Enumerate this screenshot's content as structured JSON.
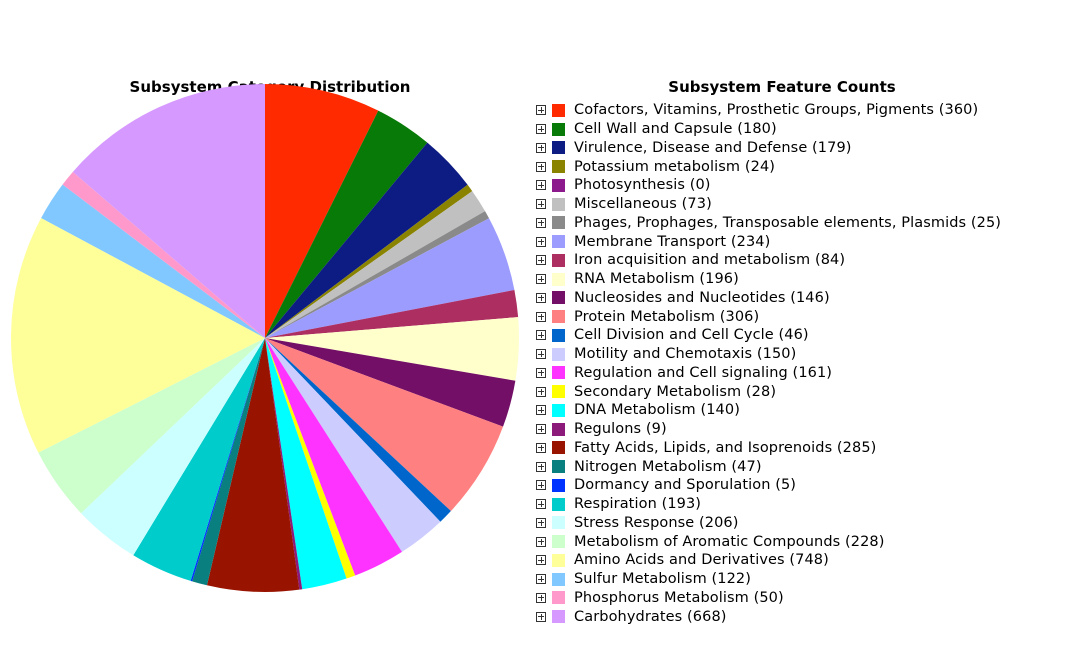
{
  "chart_data": [
    {
      "type": "pie",
      "title": "Subsystem Category Distribution",
      "start_angle": "12 o'clock",
      "direction": "clockwise",
      "categories": [
        "Cofactors, Vitamins, Prosthetic Groups, Pigments",
        "Cell Wall and Capsule",
        "Virulence, Disease and Defense",
        "Potassium metabolism",
        "Photosynthesis",
        "Miscellaneous",
        "Phages, Prophages, Transposable elements, Plasmids",
        "Membrane Transport",
        "Iron acquisition and metabolism",
        "RNA Metabolism",
        "Nucleosides and Nucleotides",
        "Protein Metabolism",
        "Cell Division and Cell Cycle",
        "Motility and Chemotaxis",
        "Regulation and Cell signaling",
        "Secondary Metabolism",
        "DNA Metabolism",
        "Regulons",
        "Fatty Acids, Lipids, and Isoprenoids",
        "Nitrogen Metabolism",
        "Dormancy and Sporulation",
        "Respiration",
        "Stress Response",
        "Metabolism of Aromatic Compounds",
        "Amino Acids and Derivatives",
        "Sulfur Metabolism",
        "Phosphorus Metabolism",
        "Carbohydrates"
      ],
      "values": [
        360,
        180,
        179,
        24,
        0,
        73,
        25,
        234,
        84,
        196,
        146,
        306,
        46,
        150,
        161,
        28,
        140,
        9,
        285,
        47,
        5,
        193,
        206,
        228,
        748,
        122,
        50,
        668
      ],
      "colors": [
        "#ff2a00",
        "#077a07",
        "#0d1c82",
        "#8a8300",
        "#8c1a8c",
        "#c0c0c0",
        "#8a8a8a",
        "#9c9cff",
        "#ad2f62",
        "#ffffcc",
        "#730f66",
        "#ff8080",
        "#0066cc",
        "#ccccff",
        "#ff33ff",
        "#ffff00",
        "#00ffff",
        "#8c1a7a",
        "#991400",
        "#0a7f7f",
        "#0033ff",
        "#00cccc",
        "#ccffff",
        "#ccffcc",
        "#ffff99",
        "#80c8ff",
        "#ff99cc",
        "#d699ff"
      ]
    },
    {
      "type": "table",
      "title": "Subsystem Feature Counts",
      "legend_placement": "right",
      "rows": [
        "Cofactors, Vitamins, Prosthetic Groups, Pigments (360)",
        "Cell Wall and Capsule (180)",
        "Virulence, Disease and Defense (179)",
        "Potassium metabolism (24)",
        "Photosynthesis (0)",
        "Miscellaneous (73)",
        "Phages, Prophages, Transposable elements, Plasmids (25)",
        "Membrane Transport (234)",
        "Iron acquisition and metabolism (84)",
        "RNA Metabolism (196)",
        "Nucleosides and Nucleotides (146)",
        "Protein Metabolism (306)",
        "Cell Division and Cell Cycle (46)",
        "Motility and Chemotaxis (150)",
        "Regulation and Cell signaling (161)",
        "Secondary Metabolism (28)",
        "DNA Metabolism (140)",
        "Regulons (9)",
        "Fatty Acids, Lipids, and Isoprenoids (285)",
        "Nitrogen Metabolism (47)",
        "Dormancy and Sporulation (5)",
        "Respiration (193)",
        "Stress Response (206)",
        "Metabolism of Aromatic Compounds (228)",
        "Amino Acids and Derivatives (748)",
        "Sulfur Metabolism (122)",
        "Phosphorus Metabolism (50)",
        "Carbohydrates (668)"
      ],
      "expand_icon": "plus-box-icon"
    }
  ]
}
